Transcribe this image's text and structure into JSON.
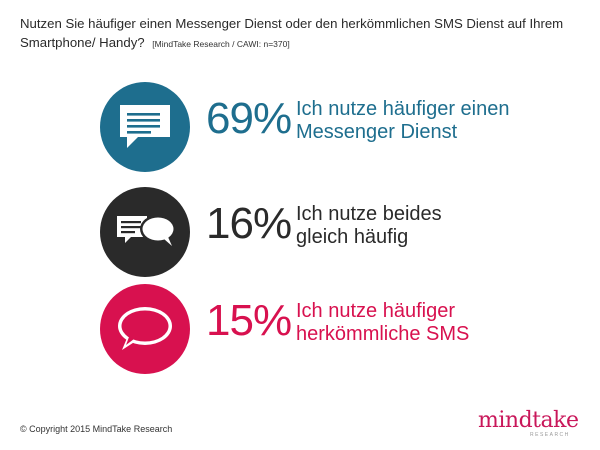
{
  "header": {
    "question": "Nutzen Sie häufiger einen Messenger Dienst oder den herkömmlichen SMS Dienst auf Ihrem Smartphone/ Handy?",
    "source": "[MindTake Research / CAWI: n=370]"
  },
  "colors": {
    "messenger": "#1e6e8e",
    "both": "#2a2a2a",
    "sms": "#d8114f"
  },
  "chart_data": {
    "type": "bar",
    "categories": [
      "Ich nutze häufiger einen Messenger Dienst",
      "Ich nutze beides gleich häufig",
      "Ich nutze häufiger herkömmliche SMS"
    ],
    "values": [
      69,
      16,
      15
    ],
    "unit": "%"
  },
  "items": [
    {
      "percent": "69%",
      "line1": "Ich nutze häufiger einen",
      "line2": "Messenger Dienst",
      "icon": "chat-lines-icon"
    },
    {
      "percent": "16%",
      "line1": "Ich nutze beides",
      "line2": "gleich häufig",
      "icon": "two-bubbles-icon"
    },
    {
      "percent": "15%",
      "line1": "Ich nutze häufiger",
      "line2": "herkömmliche SMS",
      "icon": "round-bubble-icon"
    }
  ],
  "footer": {
    "copyright": "© Copyright 2015 MindTake Research",
    "logo": "mindtake",
    "logo_sub": "RESEARCH"
  }
}
